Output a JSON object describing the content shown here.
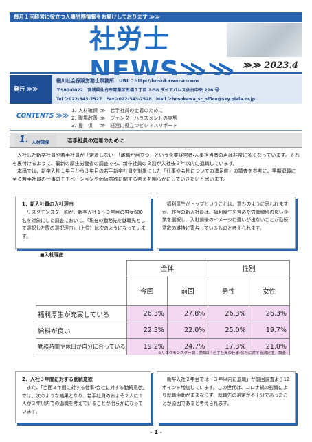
{
  "header": {
    "banner": "毎月１回経営に役立つ人事労務情報をお届けしております ≫≫",
    "title": "社労士 NEWS≫≫",
    "date": "≫≫ 2023.4"
  },
  "publisher": {
    "label": "発行 ≫≫",
    "name": "細川社会保険労務士事務所",
    "url": "URL：http://hosokawa-sr-com",
    "address": "〒980-0022　宮城県仙台市青葉区五橋１丁目 1-58 ダイアパレス仙台中央 216 号",
    "tel": "Tel ＞022-343-7527",
    "fax": "Fax＞022-343-7528",
    "mail": "Mail ＞hosokawa_sr_office@sky.plala.or.jp"
  },
  "contents": {
    "label": "CONTENTS ≫≫",
    "items": [
      [
        "1.",
        "人材確保",
        "≫　若手社員の定着のために"
      ],
      [
        "2.",
        "職場改善",
        "≫　ジェンダーハラスメントの実態"
      ],
      [
        "3.",
        "提　供",
        "≫　経営に役立つビジネスリポート"
      ]
    ]
  },
  "section": {
    "number": "1.",
    "category": "人材確保",
    "title": "若手社員の定着のために",
    "intro": [
      "入社した新卒社員や若手社員が「定着しない」「離職が目立つ」という企業経営者・人事担当者の声は非常に多くなっています。それを裏付けるように、最新の厚生労働省の調査でも、新卒社員の３割が入社後３年以内に退職しています。",
      "本稿では、新卒入社１年目から３年目の若手新卒社員を対象にした「仕事や会社についての満足度」の調査を参考に、早期退職に至る若手社員の仕事のモチベーションや勤続意欲に関する考えを明らかにしていきたいと思います。"
    ],
    "box1": {
      "heading": "1．新入社員の入社理由",
      "left": "リスクモンスター㈱が、新卒入社１～３年目の男女600名を対象にした調査において、「現在の勤務先を就職先として選択した際の選択理由」（上位）は次のようになっています。",
      "right": "福利厚生がトップということは、意外のように思われますが、昨今の新入社員は、福利厚生を含めた労働環境の良い企業を選択し、入社前後のイメージに違いが出ないことが勤続意欲の維持に寄与しているものと考えられます。"
    },
    "table": {
      "title": "■入社理由",
      "groups": [
        "全体",
        "性別"
      ],
      "columns": [
        "今回",
        "前回",
        "男性",
        "女性"
      ],
      "rows": [
        {
          "label": "福利厚生が充実している",
          "values": [
            "26.3%",
            "27.8%",
            "26.3%",
            "26.3%"
          ]
        },
        {
          "label": "給料が良い",
          "values": [
            "22.3%",
            "22.0%",
            "25.0%",
            "19.7%"
          ]
        },
        {
          "label": "勤務時間や休日が自分に合っている",
          "values": [
            "19.2%",
            "24.7%",
            "17.3%",
            "21.0%"
          ]
        }
      ],
      "note": "※リスクモンスター調：第6回「若手社員の仕事・会社に対する満足度」調査"
    },
    "box2": {
      "heading": "2．入社３年間に対する勤続意欲",
      "left": "また、「当面３年間に対する仕事・会社に対する勤続意欲」では、次のような結果となり、若手社員のおよそ２人に１人が３年以内での退職を考えていることが明らかになっています。",
      "right": "新卒入社２年目では「３年以内に退職」が前回調査より12ポイント増加しています。この世代は、コロナ禍の影響により就職活動がままならず、就職先の選定が不十分であったことが原因であると考えられます。"
    }
  },
  "footer": "- 1 -"
}
